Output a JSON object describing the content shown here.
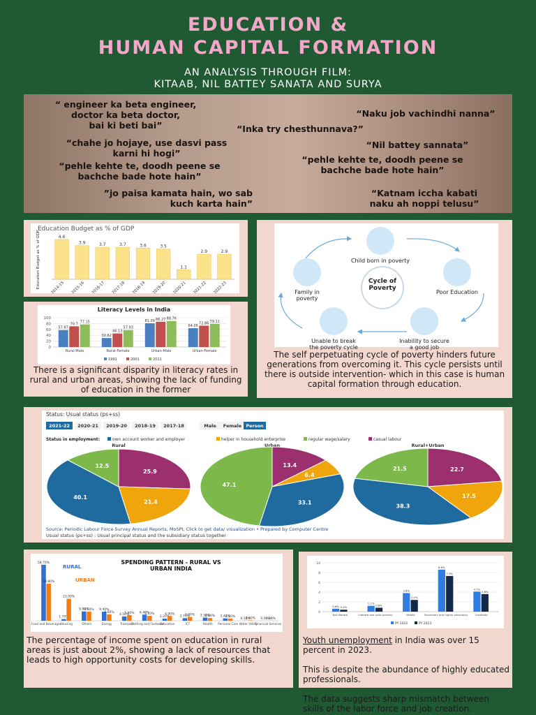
{
  "header": {
    "title_line1": "EDUCATION &",
    "title_line2": "HUMAN CAPITAL FORMATION",
    "subtitle_line1": "AN ANALYSIS THROUGH FILM:",
    "subtitle_line2": "KITAAB, NIL BATTEY SANATA AND SURYA"
  },
  "quotes": [
    "“ engineer ka beta engineer,\ndoctor ka beta doctor,\nbai ki beti bai”",
    "“Naku job vachindhi nanna”",
    "“Inka try chesthunnava?”",
    "“chahe jo hojaye, use dasvi pass\nkarni hi hogi”",
    "“Nil battey sannata”",
    "“pehle kehte te, doodh peene se\nbachche bade hote hain”",
    "“pehle kehte te, doodh peene se\nbachche bade hote hain”",
    "”jo paisa kamata hain, wo sab\nkuch karta hain”",
    "“Katnam iccha kabati\nnaku ah noppi telusu”"
  ],
  "budget_chart": {
    "type": "bar",
    "title": "Education Budget as % of GDP",
    "y_label": "Education Budget as % of GDP",
    "categories": [
      "2014-15",
      "2015-16",
      "2016-17",
      "2017-18",
      "2018-19",
      "2019-20",
      "2020-21",
      "2021-22",
      "2022-23"
    ],
    "values": [
      4.6,
      3.9,
      3.7,
      3.7,
      3.6,
      3.5,
      1.1,
      2.9,
      2.9
    ],
    "color": "#fde28c",
    "ylim": [
      0,
      5
    ]
  },
  "literacy_chart": {
    "type": "bar",
    "title": "Literacy Levels in India",
    "categories": [
      "Rural-Male",
      "Rural-Female",
      "Urban-Male",
      "Urban-Female"
    ],
    "series": [
      {
        "name": "1991",
        "color": "#4a7fc1",
        "values": [
          57.87,
          30.62,
          81.09,
          64.05
        ]
      },
      {
        "name": "2001",
        "color": "#c0504d",
        "values": [
          70.7,
          46.13,
          86.27,
          72.86
        ]
      },
      {
        "name": "2011",
        "color": "#8fbc5a",
        "values": [
          77.15,
          57.93,
          88.76,
          79.11
        ]
      }
    ],
    "ylim": [
      0,
      100
    ],
    "yticks": [
      0,
      20,
      40,
      60,
      80,
      100
    ]
  },
  "literacy_caption": "There is a significant disparity in literacy rates in rural and urban areas, showing the lack of funding of education in the former",
  "cycle": {
    "center": "Cycle of\nPoverty",
    "nodes": [
      "Child born in poverty",
      "Poor Education",
      "Inability to secure\na good job",
      "Unable to break\nthe poverty cycle",
      "Family in\npoverty"
    ],
    "caption": "The self perpetuating cycle of poverty hinders future generations from overcoming it. This cycle persists until there is outside intervention- which in this case is human capital formation through education."
  },
  "employment_chart": {
    "type": "pie",
    "status_label": "Status: Usual status (ps+ss)",
    "year_tabs": [
      "2021-22",
      "2020-21",
      "2019-20",
      "2018-19",
      "2017-18"
    ],
    "sex_tabs": [
      "Male",
      "Female",
      "Person"
    ],
    "legend_title": "Status in employment:",
    "categories": [
      "own account worker and employer",
      "helper in household enterprise",
      "regular wage/salary",
      "casual labour"
    ],
    "colors": [
      "#1f6a9e",
      "#f0a50c",
      "#7cb84a",
      "#9c2f6e"
    ],
    "pies": [
      {
        "name": "Rural",
        "values": [
          40.1,
          21.4,
          12.5,
          25.9
        ]
      },
      {
        "name": "Urban",
        "values": [
          33.1,
          6.4,
          47.1,
          13.4
        ]
      },
      {
        "name": "Rural+Urban",
        "values": [
          38.3,
          17.5,
          21.5,
          22.7
        ]
      }
    ],
    "source": "Source: Periodic Labour Force Survey Annual Reports, MoSPI, Click to get data/ visualization • Prepared by Computer Centre",
    "note": "Usual status (ps+ss) : Usual principal status and the subsidiary status together"
  },
  "spending_chart": {
    "type": "bar",
    "title": "SPENDING PATTERN - RURAL VS URBAN INDIA",
    "categories": [
      "Food and Beverages",
      "Housing",
      "Others",
      "Energy",
      "Transport",
      "Clothing and Footwear",
      "Education",
      "ICT",
      "Health",
      "Personal Care",
      "Water Utility",
      "Financial Services"
    ],
    "series": [
      {
        "name": "RURAL",
        "color": "#2f6fd6",
        "values": [
          58.7,
          1.7,
          9.8,
          9.4,
          4.5,
          6.4,
          2.2,
          2.7,
          3.3,
          2.4,
          0.1,
          0.0
        ],
        "value_labels": [
          "58.70%",
          "1.70%",
          "9.80%",
          "9.40%",
          "4.50%",
          "6.40%",
          "2.20%",
          "2.70%",
          "3.30%",
          "2.40%",
          "0.10%",
          "0.00%"
        ]
      },
      {
        "name": "URBAN",
        "color": "#f07c1a",
        "values": [
          38.8,
          23.0,
          9.5,
          6.6,
          5.9,
          5.1,
          4.9,
          3.9,
          2.8,
          2.2,
          0.4,
          0.09
        ],
        "value_labels": [
          "38.80%",
          "23.00%",
          "9.50%",
          "6.60%",
          "5.90%",
          "5.10%",
          "4.90%",
          "3.90%",
          "2.80%",
          "2.20%",
          "0.40%",
          "0.09%"
        ]
      }
    ],
    "ylim": [
      0,
      60
    ]
  },
  "spending_caption": "The percentage of income spent on education in rural areas is just about 2%, showing a lack of resources that leads to high opportunity costs for developing skills.",
  "unemployment_chart": {
    "type": "bar",
    "categories": [
      "Not literate",
      "Literate and upto primary",
      "Middle",
      "Secondary and higher secondary",
      "Graduate"
    ],
    "series": [
      {
        "name": "PY 2022",
        "color": "#2f7de1",
        "values": [
          0.6,
          1.2,
          3.8,
          8.6,
          4.1
        ],
        "value_labels": [
          "0.6%",
          "1.2%",
          "3.8%",
          "8.6%",
          "4.1%"
        ]
      },
      {
        "name": "PY 2023",
        "color": "#13294b",
        "values": [
          0.4,
          0.8,
          2.4,
          7.3,
          3.6
        ],
        "value_labels": [
          "0.4%",
          "0.8%",
          "2.4%",
          "7.3%",
          "3.6%"
        ]
      }
    ],
    "ylim": [
      0,
      10
    ],
    "yticks": [
      0,
      2,
      4,
      6,
      8,
      10
    ]
  },
  "unemployment_caption": {
    "link": "Youth unemployment",
    "line1": " in India was over 15 percent in 2023.",
    "line2": "This is despite the abundance of highly educated professionals.",
    "line3": "The data suggests sharp mismatch between skills of the labor force and job creation."
  }
}
